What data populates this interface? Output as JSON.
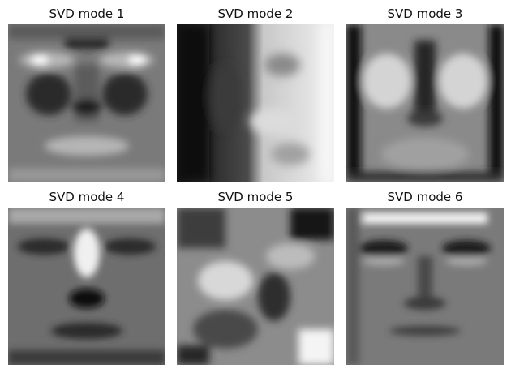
{
  "figure": {
    "panels": [
      {
        "title": "SVD mode 1"
      },
      {
        "title": "SVD mode 2"
      },
      {
        "title": "SVD mode 3"
      },
      {
        "title": "SVD mode 4"
      },
      {
        "title": "SVD mode 5"
      },
      {
        "title": "SVD mode 6"
      }
    ],
    "colormap": "gray"
  }
}
